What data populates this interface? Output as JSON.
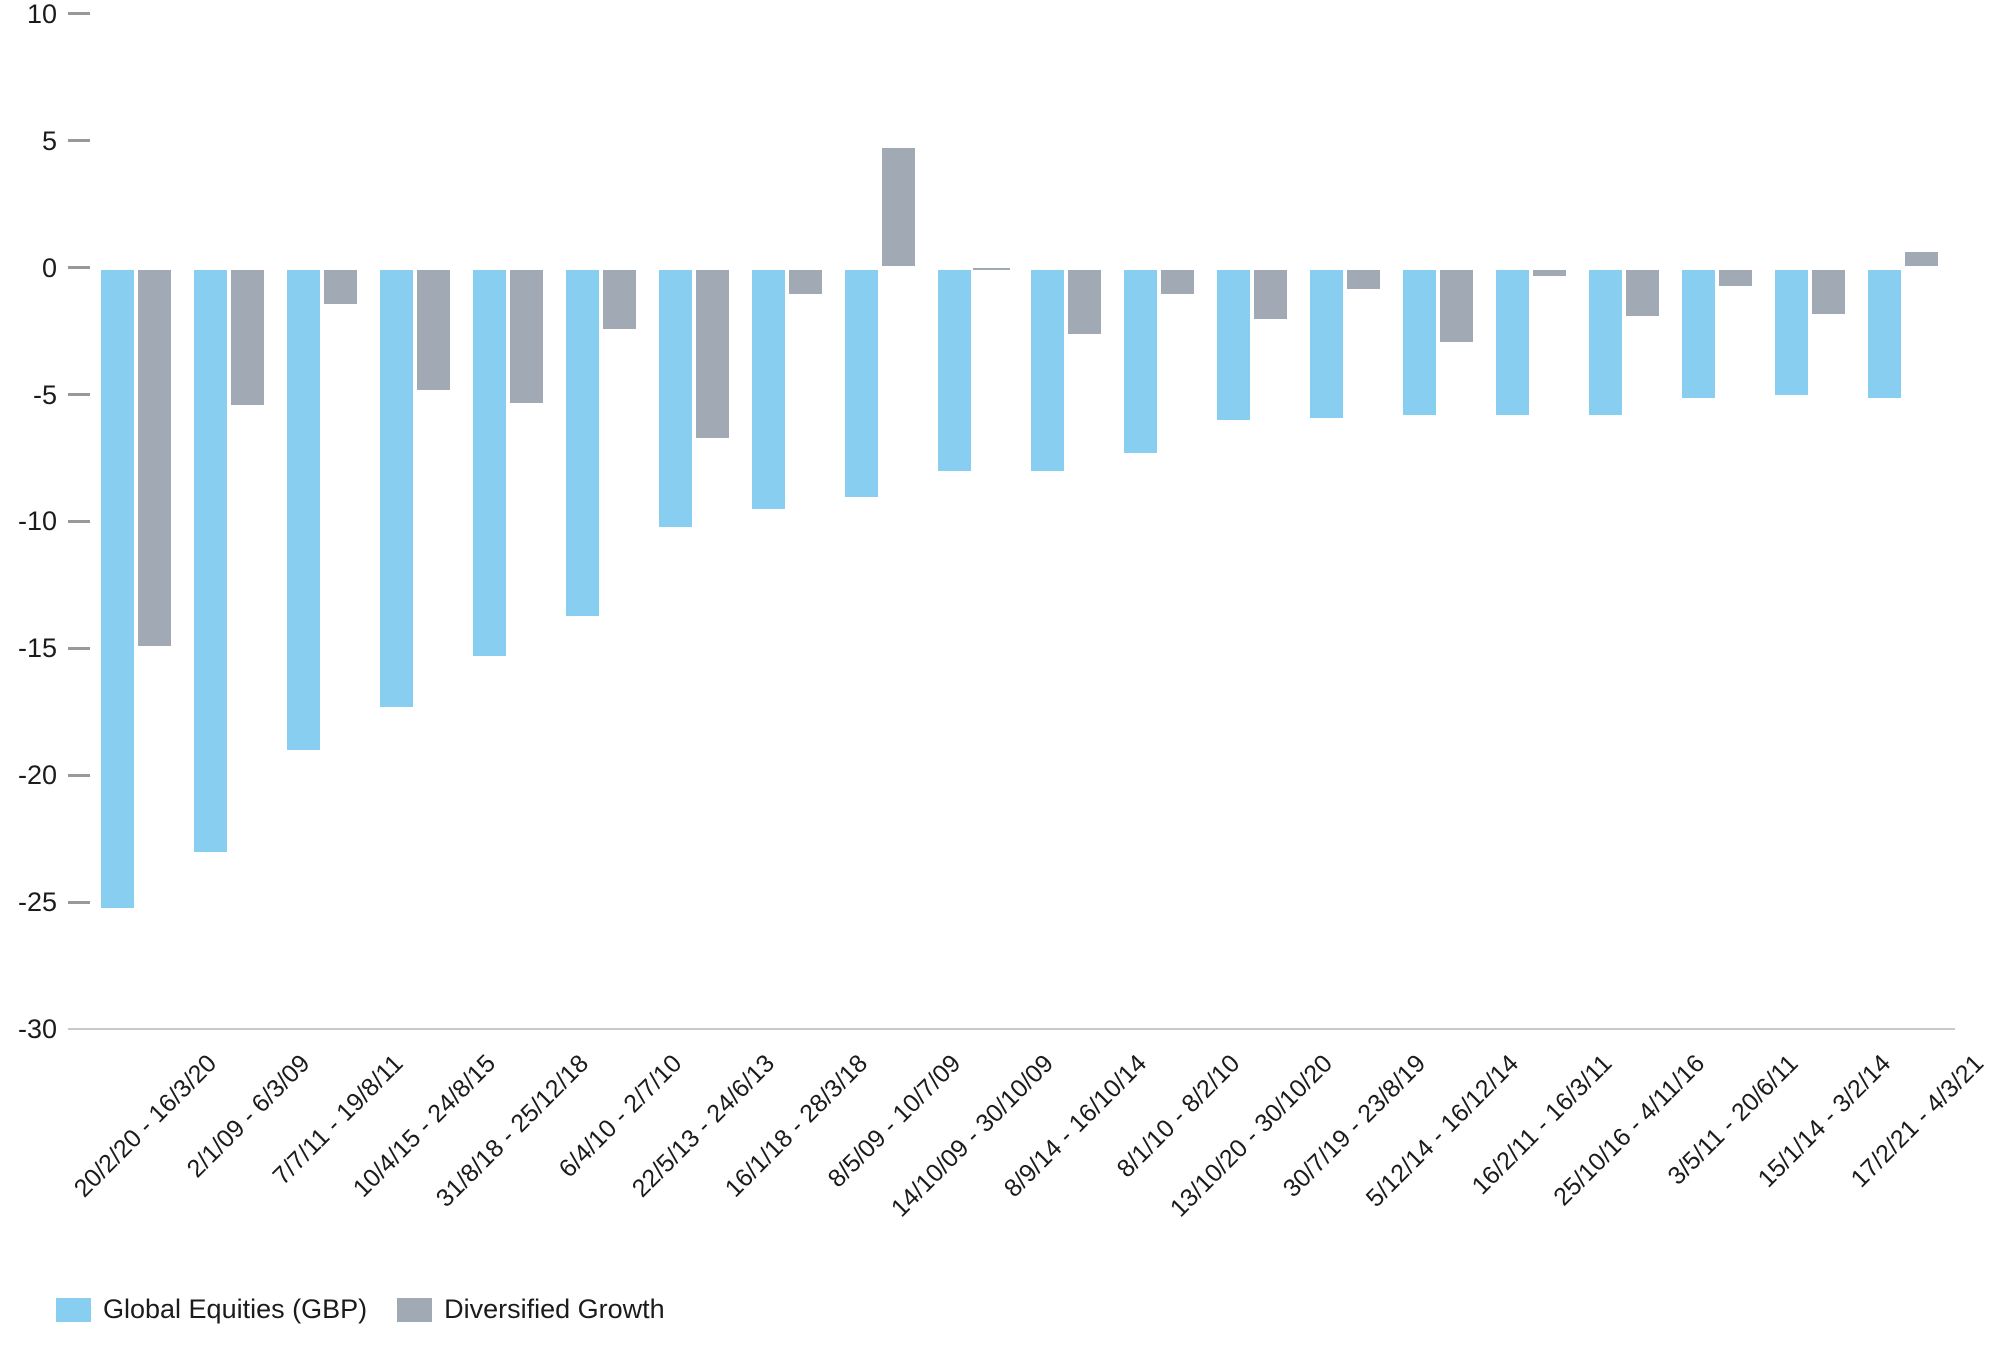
{
  "chart_data": {
    "type": "bar",
    "title": "",
    "categories": [
      "20/2/20 - 16/3/20",
      "2/1/09 - 6/3/09",
      "7/7/11 - 19/8/11",
      "10/4/15 - 24/8/15",
      "31/8/18 - 25/12/18",
      "6/4/10 - 2/7/10",
      "22/5/13 - 24/6/13",
      "16/1/18 - 28/3/18",
      "8/5/09 - 10/7/09",
      "14/10/09 - 30/10/09",
      "8/9/14 - 16/10/14",
      "8/1/10 - 8/2/10",
      "13/10/20 - 30/10/20",
      "30/7/19 - 23/8/19",
      "5/12/14 - 16/12/14",
      "16/2/11 - 16/3/11",
      "25/10/16 - 4/11/16",
      "3/5/11 - 20/6/11",
      "15/1/14 - 3/2/14",
      "17/2/21 - 4/3/21"
    ],
    "series": [
      {
        "name": "Global Equities (GBP)",
        "color": "#87CEF0",
        "values": [
          -25.3,
          -23.1,
          -19.1,
          -17.4,
          -15.4,
          -13.8,
          -10.3,
          -9.6,
          -9.1,
          -8.1,
          -8.1,
          -7.4,
          -6.1,
          -6.0,
          -5.9,
          -5.9,
          -5.9,
          -5.2,
          -5.1,
          -5.2
        ]
      },
      {
        "name": "Diversified Growth",
        "color": "#A0A9B4",
        "values": [
          -15.0,
          -5.5,
          -1.5,
          -4.9,
          -5.4,
          -2.5,
          -6.8,
          -1.1,
          4.8,
          -0.1,
          -2.7,
          -1.1,
          -2.1,
          -0.9,
          -3.0,
          -0.4,
          -2.0,
          -0.8,
          -1.9,
          0.7
        ]
      }
    ],
    "xlabel": "",
    "ylabel": "",
    "ylim": [
      -30,
      10
    ],
    "y_ticks": [
      10,
      5,
      0,
      -5,
      -10,
      -15,
      -20,
      -25,
      -30
    ],
    "grid": "baseline-only",
    "legend_position": "bottom-left"
  }
}
